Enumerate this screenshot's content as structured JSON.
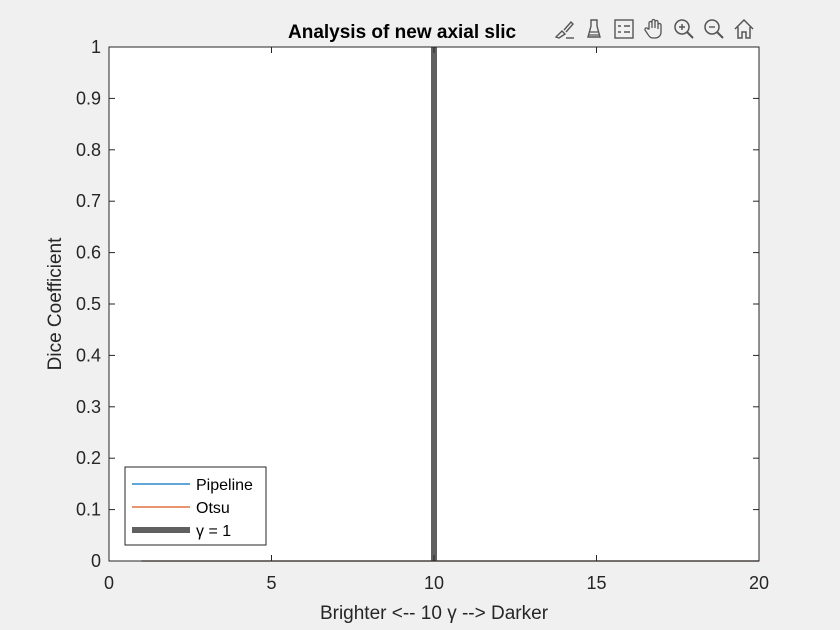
{
  "window": {
    "background": "#f0f0f0"
  },
  "toolbar": {
    "buttons": [
      {
        "name": "brush-data-button",
        "icon": "brush-edit-icon"
      },
      {
        "name": "data-tips-button",
        "icon": "datatip-icon"
      },
      {
        "name": "legend-toggle-button",
        "icon": "legend-icon"
      },
      {
        "name": "pan-button",
        "icon": "hand-icon"
      },
      {
        "name": "zoom-in-button",
        "icon": "zoom-in-icon"
      },
      {
        "name": "zoom-out-button",
        "icon": "zoom-out-icon"
      },
      {
        "name": "home-button",
        "icon": "home-icon"
      }
    ]
  },
  "chart_data": {
    "type": "line",
    "title": "Analysis of new axial slic",
    "xlabel": "Brighter <-- 10 γ --> Darker",
    "ylabel": "Dice Coefficient",
    "xlim": [
      0,
      20
    ],
    "ylim": [
      0,
      1
    ],
    "xticks": [
      0,
      5,
      10,
      15,
      20
    ],
    "xtick_labels": [
      "0",
      "5",
      "10",
      "15",
      "20"
    ],
    "yticks": [
      0,
      0.1,
      0.2,
      0.3,
      0.4,
      0.5,
      0.6,
      0.7,
      0.8,
      0.9,
      1
    ],
    "ytick_labels": [
      "0",
      "0.1",
      "0.2",
      "0.3",
      "0.4",
      "0.5",
      "0.6",
      "0.7",
      "0.8",
      "0.9",
      "1"
    ],
    "grid": false,
    "legend_position": "bottom-left",
    "series": [
      {
        "name": "Pipeline",
        "color": "#0072bd",
        "width": "thin",
        "x": [
          1,
          20
        ],
        "y": [
          0,
          0
        ]
      },
      {
        "name": "Otsu",
        "color": "#d95319",
        "width": "thin",
        "x": [
          1,
          20
        ],
        "y": [
          0,
          0
        ]
      },
      {
        "name": "γ = 1",
        "color": "#606060",
        "width": "thick",
        "x": [
          10,
          10
        ],
        "y": [
          0,
          1
        ]
      }
    ]
  }
}
